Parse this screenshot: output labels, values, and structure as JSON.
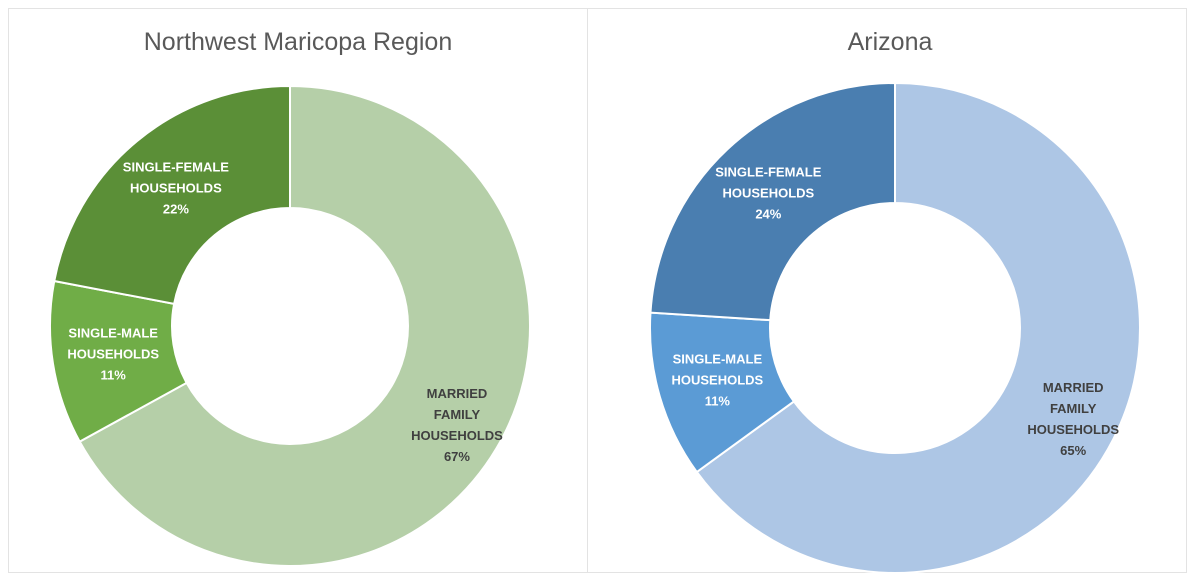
{
  "chart_data": [
    {
      "type": "donut",
      "title": "Northwest Maricopa Region",
      "categories": [
        "MARRIED FAMILY HOUSEHOLDS",
        "SINGLE-MALE HOUSEHOLDS",
        "SINGLE-FEMALE HOUSEHOLDS"
      ],
      "values": [
        67,
        11,
        22
      ],
      "value_labels": [
        "67%",
        "11%",
        "22%"
      ],
      "colors": [
        "#b5cfa8",
        "#70ad47",
        "#5b8f37"
      ]
    },
    {
      "type": "donut",
      "title": "Arizona",
      "categories": [
        "MARRIED FAMILY HOUSEHOLDS",
        "SINGLE-MALE HOUSEHOLDS",
        "SINGLE-FEMALE HOUSEHOLDS"
      ],
      "values": [
        65,
        11,
        24
      ],
      "value_labels": [
        "65%",
        "11%",
        "24%"
      ],
      "colors": [
        "#adc6e5",
        "#5b9bd5",
        "#4a7eb0"
      ]
    }
  ]
}
